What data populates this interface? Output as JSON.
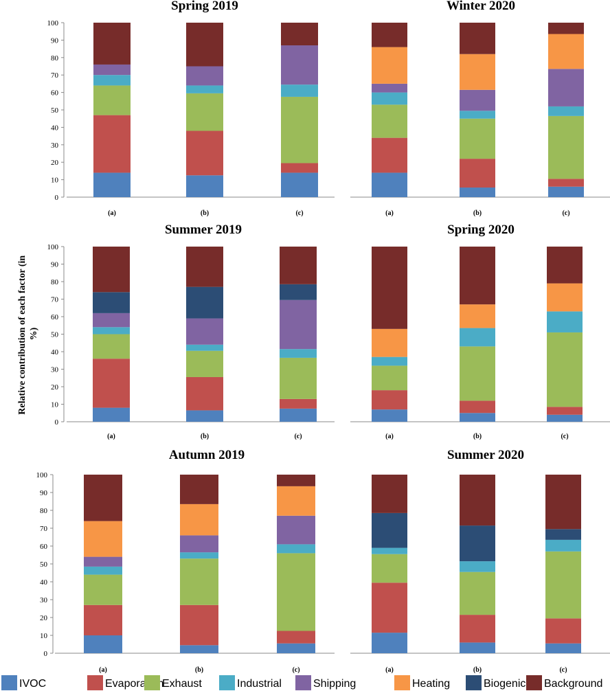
{
  "factor_colors": {
    "IVOC": "#4f81bd",
    "Evaporation": "#c0504d",
    "Exhaust": "#9bbb59",
    "Industrial": "#4bacc6",
    "Shipping": "#8064a2",
    "Heating": "#f79646",
    "Biogenic": "#2c4d75",
    "Background": "#772c2a"
  },
  "legend": [
    "IVOC",
    "Evaporation",
    "Exhaust",
    "Industrial",
    "Shipping",
    "Heating",
    "Biogenic",
    "Background"
  ],
  "ylabel_lines": [
    "Relative contribution of each factor (in",
    "%)"
  ],
  "chart_data": [
    {
      "type": "bar",
      "stacked": true,
      "title": "Spring 2019",
      "categories": [
        "(a)",
        "(b)",
        "(c)"
      ],
      "ylim": [
        0,
        100
      ],
      "yticks": [
        0,
        10,
        20,
        30,
        40,
        50,
        60,
        70,
        80,
        90,
        100
      ],
      "series": [
        {
          "name": "IVOC",
          "values": [
            14,
            12.5,
            14
          ]
        },
        {
          "name": "Evaporation",
          "values": [
            33,
            25.5,
            5.5
          ]
        },
        {
          "name": "Exhaust",
          "values": [
            17,
            21.5,
            38
          ]
        },
        {
          "name": "Industrial",
          "values": [
            6,
            4.5,
            7
          ]
        },
        {
          "name": "Shipping",
          "values": [
            6,
            11,
            22.5
          ]
        },
        {
          "name": "Heating",
          "values": [
            0,
            0,
            0
          ]
        },
        {
          "name": "Biogenic",
          "values": [
            0,
            0,
            0
          ]
        },
        {
          "name": "Background",
          "values": [
            24,
            25,
            13
          ]
        }
      ]
    },
    {
      "type": "bar",
      "stacked": true,
      "title": "Winter 2020",
      "categories": [
        "(a)",
        "(b)",
        "(c)"
      ],
      "ylim": [
        0,
        100
      ],
      "yticks": [],
      "series": [
        {
          "name": "IVOC",
          "values": [
            14,
            5.5,
            6
          ]
        },
        {
          "name": "Evaporation",
          "values": [
            20,
            16.5,
            4.5
          ]
        },
        {
          "name": "Exhaust",
          "values": [
            19,
            23,
            36
          ]
        },
        {
          "name": "Industrial",
          "values": [
            7,
            4.5,
            5.5
          ]
        },
        {
          "name": "Shipping",
          "values": [
            5,
            12,
            21.5
          ]
        },
        {
          "name": "Heating",
          "values": [
            21,
            20.5,
            20
          ]
        },
        {
          "name": "Biogenic",
          "values": [
            0,
            0,
            0
          ]
        },
        {
          "name": "Background",
          "values": [
            14,
            18,
            6.5
          ]
        }
      ]
    },
    {
      "type": "bar",
      "stacked": true,
      "title": "Summer 2019",
      "categories": [
        "(a)",
        "(b)",
        "(c)"
      ],
      "ylim": [
        0,
        100
      ],
      "yticks": [
        0,
        10,
        20,
        30,
        40,
        50,
        60,
        70,
        80,
        90,
        100
      ],
      "series": [
        {
          "name": "IVOC",
          "values": [
            8,
            6.5,
            7.5
          ]
        },
        {
          "name": "Evaporation",
          "values": [
            28,
            19,
            5.5
          ]
        },
        {
          "name": "Exhaust",
          "values": [
            14,
            15,
            23.5
          ]
        },
        {
          "name": "Industrial",
          "values": [
            4,
            3.5,
            5
          ]
        },
        {
          "name": "Shipping",
          "values": [
            8,
            15,
            28
          ]
        },
        {
          "name": "Heating",
          "values": [
            0,
            0,
            0
          ]
        },
        {
          "name": "Biogenic",
          "values": [
            12,
            18,
            9
          ]
        },
        {
          "name": "Background",
          "values": [
            26,
            23,
            21.5
          ]
        }
      ]
    },
    {
      "type": "bar",
      "stacked": true,
      "title": "Spring 2020",
      "categories": [
        "(a)",
        "(b)",
        "(c)"
      ],
      "ylim": [
        0,
        100
      ],
      "yticks": [],
      "series": [
        {
          "name": "IVOC",
          "values": [
            7,
            5,
            4
          ]
        },
        {
          "name": "Evaporation",
          "values": [
            11,
            7,
            4.5
          ]
        },
        {
          "name": "Exhaust",
          "values": [
            14,
            31,
            42.5
          ]
        },
        {
          "name": "Industrial",
          "values": [
            5,
            10.5,
            12
          ]
        },
        {
          "name": "Shipping",
          "values": [
            0,
            0,
            0
          ]
        },
        {
          "name": "Heating",
          "values": [
            16,
            13.5,
            16
          ]
        },
        {
          "name": "Biogenic",
          "values": [
            0,
            0,
            0
          ]
        },
        {
          "name": "Background",
          "values": [
            47,
            33,
            21
          ]
        }
      ]
    },
    {
      "type": "bar",
      "stacked": true,
      "title": "Autumn 2019",
      "categories": [
        "(a)",
        "(b)",
        "(c)"
      ],
      "ylim": [
        0,
        100
      ],
      "yticks": [
        0,
        10,
        20,
        30,
        40,
        50,
        60,
        70,
        80,
        90,
        100
      ],
      "series": [
        {
          "name": "IVOC",
          "values": [
            10,
            4.5,
            5.5
          ]
        },
        {
          "name": "Evaporation",
          "values": [
            17,
            22.5,
            7
          ]
        },
        {
          "name": "Exhaust",
          "values": [
            17,
            26,
            43.5
          ]
        },
        {
          "name": "Industrial",
          "values": [
            4.5,
            3.5,
            5
          ]
        },
        {
          "name": "Shipping",
          "values": [
            5.5,
            9.5,
            16
          ]
        },
        {
          "name": "Heating",
          "values": [
            20,
            17.5,
            16.5
          ]
        },
        {
          "name": "Biogenic",
          "values": [
            0,
            0,
            0
          ]
        },
        {
          "name": "Background",
          "values": [
            26,
            16.5,
            6.5
          ]
        }
      ]
    },
    {
      "type": "bar",
      "stacked": true,
      "title": "Summer 2020",
      "categories": [
        "(a)",
        "(b)",
        "(c)"
      ],
      "ylim": [
        0,
        100
      ],
      "yticks": [],
      "series": [
        {
          "name": "IVOC",
          "values": [
            11.5,
            6,
            5.5
          ]
        },
        {
          "name": "Evaporation",
          "values": [
            28,
            15.5,
            14
          ]
        },
        {
          "name": "Exhaust",
          "values": [
            16,
            24,
            37.5
          ]
        },
        {
          "name": "Industrial",
          "values": [
            3.5,
            6,
            6.5
          ]
        },
        {
          "name": "Shipping",
          "values": [
            0,
            0,
            0
          ]
        },
        {
          "name": "Heating",
          "values": [
            0,
            0,
            0
          ]
        },
        {
          "name": "Biogenic",
          "values": [
            19.5,
            20,
            6
          ]
        },
        {
          "name": "Background",
          "values": [
            21.5,
            28.5,
            30.5
          ]
        }
      ]
    }
  ]
}
